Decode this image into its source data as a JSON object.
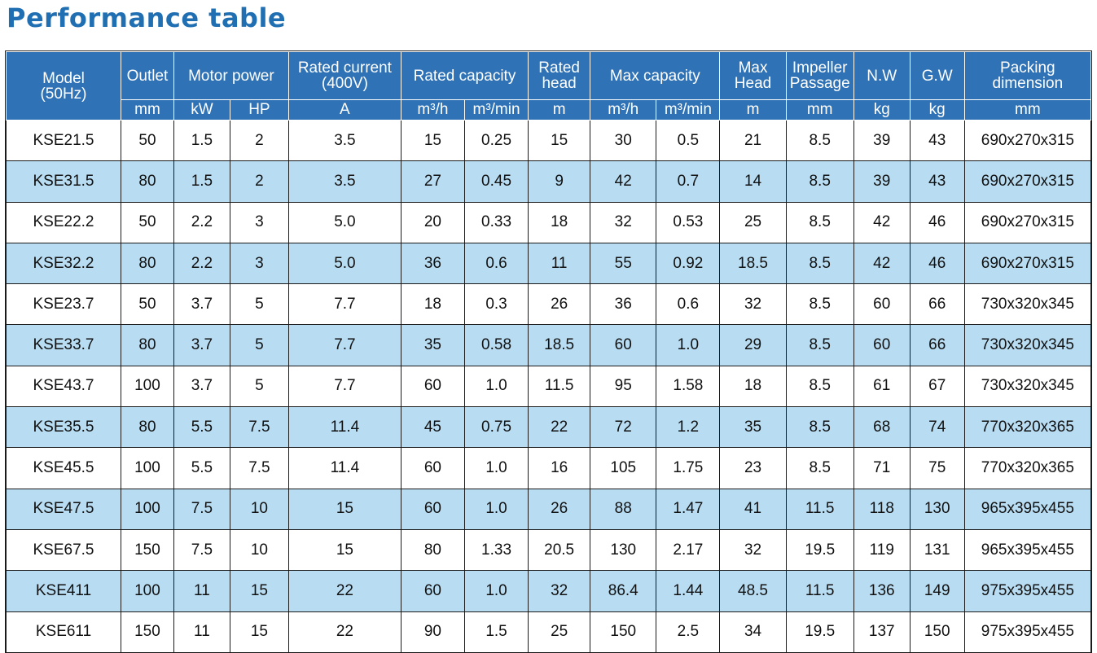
{
  "title": "Performance table",
  "colors": {
    "title": "#1f6fb2",
    "header_bg": "#2f72b5",
    "header_text": "#ffffff",
    "row_alt": "#b8dcf2",
    "row_plain": "#ffffff"
  },
  "header": {
    "model": "Model\n(50Hz)",
    "outlet": "Outlet",
    "motor_power": "Motor power",
    "rated_current": "Rated current\n(400V)",
    "rated_capacity": "Rated capacity",
    "rated_head": "Rated\nhead",
    "max_capacity": "Max capacity",
    "max_head": "Max\nHead",
    "impeller_passage": "Impeller\nPassage",
    "nw": "N.W",
    "gw": "G.W",
    "packing": "Packing\ndimension"
  },
  "units": [
    "mm",
    "kW",
    "HP",
    "A",
    "m³/h",
    "m³/min",
    "m",
    "m³/h",
    "m³/min",
    "m",
    "mm",
    "kg",
    "kg",
    "mm"
  ],
  "rows": [
    [
      "KSE21.5",
      "50",
      "1.5",
      "2",
      "3.5",
      "15",
      "0.25",
      "15",
      "30",
      "0.5",
      "21",
      "8.5",
      "39",
      "43",
      "690x270x315"
    ],
    [
      "KSE31.5",
      "80",
      "1.5",
      "2",
      "3.5",
      "27",
      "0.45",
      "9",
      "42",
      "0.7",
      "14",
      "8.5",
      "39",
      "43",
      "690x270x315"
    ],
    [
      "KSE22.2",
      "50",
      "2.2",
      "3",
      "5.0",
      "20",
      "0.33",
      "18",
      "32",
      "0.53",
      "25",
      "8.5",
      "42",
      "46",
      "690x270x315"
    ],
    [
      "KSE32.2",
      "80",
      "2.2",
      "3",
      "5.0",
      "36",
      "0.6",
      "11",
      "55",
      "0.92",
      "18.5",
      "8.5",
      "42",
      "46",
      "690x270x315"
    ],
    [
      "KSE23.7",
      "50",
      "3.7",
      "5",
      "7.7",
      "18",
      "0.3",
      "26",
      "36",
      "0.6",
      "32",
      "8.5",
      "60",
      "66",
      "730x320x345"
    ],
    [
      "KSE33.7",
      "80",
      "3.7",
      "5",
      "7.7",
      "35",
      "0.58",
      "18.5",
      "60",
      "1.0",
      "29",
      "8.5",
      "60",
      "66",
      "730x320x345"
    ],
    [
      "KSE43.7",
      "100",
      "3.7",
      "5",
      "7.7",
      "60",
      "1.0",
      "11.5",
      "95",
      "1.58",
      "18",
      "8.5",
      "61",
      "67",
      "730x320x345"
    ],
    [
      "KSE35.5",
      "80",
      "5.5",
      "7.5",
      "11.4",
      "45",
      "0.75",
      "22",
      "72",
      "1.2",
      "35",
      "8.5",
      "68",
      "74",
      "770x320x365"
    ],
    [
      "KSE45.5",
      "100",
      "5.5",
      "7.5",
      "11.4",
      "60",
      "1.0",
      "16",
      "105",
      "1.75",
      "23",
      "8.5",
      "71",
      "75",
      "770x320x365"
    ],
    [
      "KSE47.5",
      "100",
      "7.5",
      "10",
      "15",
      "60",
      "1.0",
      "26",
      "88",
      "1.47",
      "41",
      "11.5",
      "118",
      "130",
      "965x395x455"
    ],
    [
      "KSE67.5",
      "150",
      "7.5",
      "10",
      "15",
      "80",
      "1.33",
      "20.5",
      "130",
      "2.17",
      "32",
      "19.5",
      "119",
      "131",
      "965x395x455"
    ],
    [
      "KSE411",
      "100",
      "11",
      "15",
      "22",
      "60",
      "1.0",
      "32",
      "86.4",
      "1.44",
      "48.5",
      "11.5",
      "136",
      "149",
      "975x395x455"
    ],
    [
      "KSE611",
      "150",
      "11",
      "15",
      "22",
      "90",
      "1.5",
      "25",
      "150",
      "2.5",
      "34",
      "19.5",
      "137",
      "150",
      "975x395x455"
    ]
  ]
}
